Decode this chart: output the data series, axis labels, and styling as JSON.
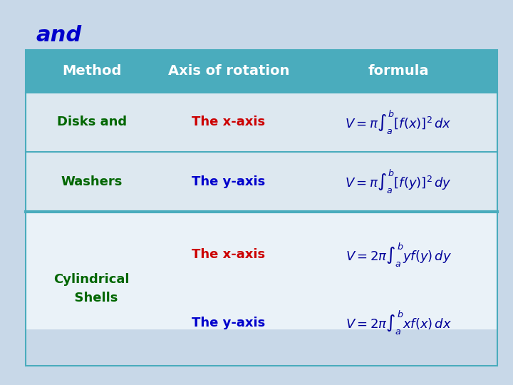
{
  "title_text": "and",
  "title_color": "#0000CC",
  "background_color": "#C8D8E8",
  "header_bg_color": "#4AACBD",
  "header_text_color": "#FFFFFF",
  "row1_bg_color": "#DDE8F0",
  "row2_bg_color": "#DDE8F0",
  "row3_bg_color": "#EAF2F8",
  "col_headers": [
    "Method",
    "Axis of rotation",
    "formula"
  ],
  "rows": [
    {
      "method": "Disks and",
      "method_color": "#006600",
      "axis": "The x-axis",
      "axis_color": "#CC0000",
      "formula": "$V = \\pi\\int_{a}^{b}[f(x)]^2\\,dx$"
    },
    {
      "method": "Washers",
      "method_color": "#006600",
      "axis": "The y-axis",
      "axis_color": "#0000CC",
      "formula": "$V = \\pi\\int_{a}^{b}[f(y)]^2\\,dy$"
    },
    {
      "method": "Cylindrical\n  Shells",
      "method_color": "#006600",
      "axis1": "The x-axis",
      "axis1_color": "#CC0000",
      "formula1": "$V = 2\\pi\\int_{a}^{b}yf(y)\\,dy$",
      "axis2": "The y-axis",
      "axis2_color": "#0000CC",
      "formula2": "$V = 2\\pi\\int_{a}^{b}xf(x)\\,dx$"
    }
  ],
  "formula_color": "#000099",
  "divider_color": "#4AACBD",
  "figsize": [
    7.2,
    5.4
  ],
  "dpi": 100
}
